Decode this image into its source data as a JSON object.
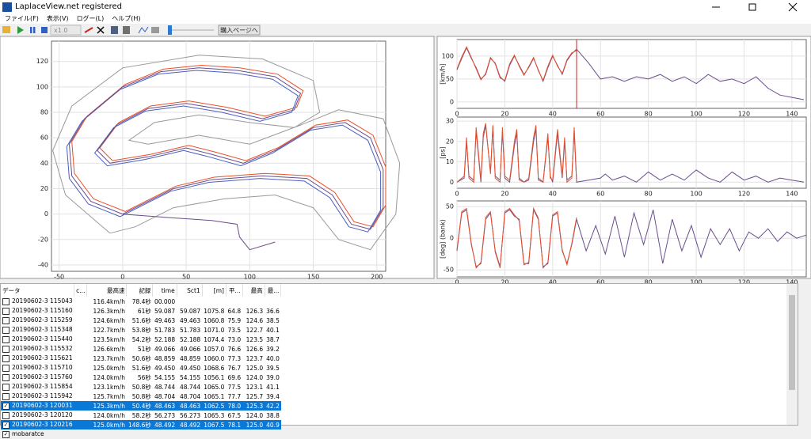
{
  "window": {
    "title": "LaplaceView.net registered"
  },
  "menu": [
    "ファイル(F)",
    "表示(V)",
    "ログー(L)",
    "ヘルプ(H)"
  ],
  "toolbar": {
    "speed": "x1.0",
    "buy_button": "購入ページへ"
  },
  "chart_data": [
    {
      "type": "line",
      "xlim": [
        -56,
        207
      ],
      "ylim": [
        -45,
        136
      ],
      "xticks": [
        -50,
        0,
        50,
        100,
        150,
        200
      ],
      "yticks": [
        -40,
        -20,
        0,
        20,
        40,
        60,
        80,
        100,
        120
      ],
      "grid": true,
      "series": [
        {
          "color": "#999999",
          "x": [
            -10,
            -45,
            -55,
            -40,
            0,
            60,
            110,
            150,
            155,
            135,
            100,
            60,
            25,
            5,
            20,
            60,
            100,
            140,
            170,
            205,
            218,
            215,
            195,
            170,
            150,
            120,
            80,
            40,
            10,
            -10
          ],
          "values": [
            -15,
            15,
            50,
            85,
            115,
            125,
            122,
            105,
            80,
            68,
            72,
            78,
            72,
            58,
            55,
            62,
            55,
            70,
            82,
            75,
            40,
            0,
            -28,
            -20,
            5,
            15,
            12,
            5,
            -10,
            -15
          ]
        },
        {
          "color": "#e8502a",
          "x": [
            2,
            -23,
            -38,
            -40,
            -28,
            2,
            32,
            62,
            92,
            122,
            142,
            137,
            112,
            82,
            52,
            22,
            -3,
            -18,
            -8,
            22,
            52,
            72,
            97,
            122,
            152,
            177,
            197,
            207,
            207,
            197,
            182,
            167,
            147,
            112,
            72,
            42,
            12,
            2
          ],
          "values": [
            2,
            12,
            32,
            57,
            77,
            102,
            114,
            117,
            115,
            110,
            97,
            84,
            77,
            84,
            89,
            85,
            72,
            52,
            42,
            47,
            54,
            49,
            42,
            52,
            70,
            74,
            62,
            37,
            7,
            -10,
            -6,
            17,
            30,
            32,
            29,
            22,
            7,
            2
          ]
        },
        {
          "color": "#4a5fc1",
          "x": [
            -2,
            -27,
            -42,
            -44,
            -32,
            -2,
            28,
            58,
            88,
            118,
            138,
            133,
            108,
            78,
            48,
            18,
            -7,
            -22,
            -12,
            18,
            48,
            68,
            93,
            118,
            148,
            173,
            193,
            203,
            203,
            193,
            178,
            163,
            143,
            108,
            68,
            38,
            8,
            -2
          ],
          "values": [
            -2,
            8,
            28,
            53,
            73,
            98,
            110,
            113,
            111,
            106,
            93,
            80,
            73,
            80,
            85,
            81,
            68,
            48,
            38,
            43,
            50,
            45,
            38,
            48,
            66,
            70,
            58,
            33,
            3,
            -14,
            -10,
            13,
            26,
            28,
            25,
            18,
            3,
            -2
          ]
        },
        {
          "color": "#6a4c8c",
          "x": [
            120,
            100,
            92,
            90,
            70,
            40,
            0,
            -25,
            -40,
            -42,
            -30,
            0,
            30,
            60,
            90,
            120,
            140,
            135,
            110,
            80,
            50,
            20,
            -5,
            -20,
            -10,
            20,
            50,
            70,
            95,
            120,
            150,
            175,
            195,
            205,
            205,
            195,
            180,
            165,
            145,
            110,
            70,
            40,
            10,
            0
          ],
          "values": [
            -22,
            -28,
            -18,
            -8,
            -5,
            -3,
            0,
            10,
            30,
            55,
            75,
            100,
            112,
            115,
            113,
            108,
            95,
            82,
            75,
            82,
            87,
            83,
            70,
            50,
            40,
            45,
            52,
            47,
            40,
            50,
            68,
            72,
            60,
            35,
            5,
            -12,
            -8,
            15,
            28,
            30,
            27,
            20,
            5,
            0
          ]
        }
      ]
    },
    {
      "type": "line",
      "ylabel": "[km/h]",
      "xlim": [
        0,
        146
      ],
      "ylim": [
        -14,
        136
      ],
      "xticks": [
        0,
        20,
        40,
        60,
        80,
        100,
        120,
        140
      ],
      "yticks": [
        0,
        50,
        100
      ],
      "grid": true,
      "cursor_x": 50,
      "series": [
        {
          "color": "#6a4c8c",
          "x": [
            0,
            2,
            4,
            6,
            8,
            10,
            12,
            14,
            16,
            18,
            20,
            22,
            24,
            26,
            28,
            30,
            32,
            34,
            36,
            38,
            40,
            42,
            44,
            46,
            48,
            50,
            55,
            60,
            65,
            70,
            75,
            80,
            85,
            90,
            95,
            100,
            105,
            110,
            115,
            120,
            125,
            130,
            135,
            140,
            145
          ],
          "values": [
            70,
            95,
            118,
            95,
            75,
            50,
            60,
            95,
            85,
            55,
            45,
            80,
            100,
            80,
            60,
            75,
            95,
            70,
            45,
            75,
            100,
            80,
            60,
            90,
            105,
            115,
            85,
            50,
            55,
            45,
            55,
            50,
            60,
            45,
            55,
            40,
            60,
            45,
            50,
            40,
            55,
            30,
            15,
            10,
            5
          ]
        },
        {
          "color": "#e8502a",
          "x": [
            0,
            2,
            4,
            6,
            8,
            10,
            12,
            14,
            16,
            18,
            20,
            22,
            24,
            26,
            28,
            30,
            32,
            34,
            36,
            38,
            40,
            42,
            44,
            46,
            48,
            50
          ],
          "values": [
            72,
            98,
            120,
            97,
            72,
            48,
            62,
            97,
            83,
            52,
            47,
            83,
            102,
            78,
            58,
            77,
            97,
            68,
            47,
            78,
            102,
            78,
            62,
            92,
            107,
            112
          ]
        }
      ]
    },
    {
      "type": "line",
      "ylabel": "[ps]",
      "xlim": [
        0,
        146
      ],
      "ylim": [
        -3,
        32
      ],
      "xticks": [
        0,
        20,
        40,
        60,
        80,
        100,
        120,
        140
      ],
      "yticks": [
        0,
        10,
        20,
        30
      ],
      "grid": true,
      "series": [
        {
          "color": "#6a4c8c",
          "x": [
            0,
            3,
            4,
            5,
            7,
            8,
            10,
            11,
            12,
            14,
            15,
            16,
            18,
            19,
            20,
            22,
            24,
            25,
            26,
            28,
            30,
            32,
            33,
            34,
            36,
            38,
            39,
            40,
            42,
            44,
            45,
            46,
            48,
            49,
            50,
            55,
            60,
            62,
            65,
            70,
            75,
            80,
            85,
            90,
            95,
            100,
            105,
            110,
            115,
            120,
            125,
            130,
            135,
            140,
            145
          ],
          "values": [
            0,
            2,
            20,
            3,
            1,
            25,
            0,
            22,
            28,
            5,
            27,
            3,
            1,
            25,
            2,
            0,
            18,
            24,
            2,
            0,
            1,
            20,
            26,
            2,
            0,
            22,
            3,
            0,
            24,
            2,
            20,
            1,
            3,
            25,
            0,
            1,
            2,
            4,
            1,
            3,
            0,
            5,
            1,
            4,
            1,
            6,
            2,
            0,
            5,
            1,
            3,
            0,
            2,
            1,
            0
          ]
        },
        {
          "color": "#e8502a",
          "x": [
            0,
            3,
            4,
            5,
            7,
            8,
            10,
            11,
            12,
            14,
            15,
            16,
            18,
            19,
            20,
            22,
            24,
            25,
            26,
            28,
            30,
            32,
            33,
            34,
            36,
            38,
            39,
            40,
            42,
            44,
            45,
            46,
            48,
            49,
            50
          ],
          "values": [
            0,
            3,
            22,
            2,
            0,
            27,
            1,
            24,
            29,
            4,
            28,
            2,
            0,
            27,
            3,
            1,
            20,
            26,
            1,
            0,
            2,
            22,
            28,
            1,
            0,
            24,
            2,
            1,
            26,
            3,
            22,
            0,
            2,
            27,
            1
          ]
        }
      ]
    },
    {
      "type": "line",
      "ylabel": "[deg] (bank)",
      "xlim": [
        0,
        146
      ],
      "ylim": [
        -61,
        59
      ],
      "xticks": [
        0,
        20,
        40,
        60,
        80,
        100,
        120,
        140
      ],
      "yticks": [
        -50,
        0,
        50
      ],
      "grid": true,
      "series": [
        {
          "color": "#6a4c8c",
          "x": [
            0,
            2,
            4,
            6,
            8,
            10,
            12,
            14,
            16,
            18,
            20,
            22,
            24,
            26,
            28,
            30,
            32,
            34,
            36,
            38,
            40,
            42,
            44,
            46,
            48,
            50,
            54,
            58,
            62,
            66,
            70,
            74,
            78,
            82,
            86,
            90,
            94,
            98,
            102,
            106,
            110,
            114,
            118,
            122,
            126,
            130,
            134,
            138,
            142,
            146
          ],
          "values": [
            -20,
            40,
            45,
            -10,
            -45,
            -40,
            30,
            40,
            -20,
            -45,
            40,
            45,
            35,
            30,
            -40,
            -40,
            45,
            30,
            -45,
            -40,
            35,
            40,
            -20,
            -40,
            -10,
            30,
            -20,
            20,
            -25,
            35,
            -30,
            40,
            -10,
            45,
            -40,
            30,
            -20,
            20,
            -30,
            15,
            -10,
            15,
            -20,
            10,
            0,
            15,
            -5,
            10,
            0,
            5
          ]
        },
        {
          "color": "#e8502a",
          "x": [
            0,
            2,
            4,
            6,
            8,
            10,
            12,
            14,
            16,
            18,
            20,
            22,
            24,
            26,
            28,
            30,
            32,
            34,
            36,
            38,
            40,
            42,
            44,
            46,
            48,
            50
          ],
          "values": [
            -18,
            42,
            47,
            -8,
            -47,
            -38,
            33,
            42,
            -22,
            -47,
            42,
            47,
            37,
            28,
            -42,
            -38,
            47,
            32,
            -47,
            -38,
            37,
            42,
            -18,
            -42,
            -8,
            33
          ]
        }
      ]
    }
  ],
  "table": {
    "columns": [
      "データ",
      "c...",
      "最高速",
      "記録",
      "time",
      "Sct1",
      "[m]",
      "平...",
      "最高",
      "最..."
    ],
    "rows": [
      {
        "checked": false,
        "selected": false,
        "cells": [
          "20190602-3 115043",
          "116.4km/h",
          "78.4秒",
          "00.000"
        ]
      },
      {
        "checked": false,
        "selected": false,
        "cells": [
          "20190602-3 115160",
          "126.3km/h",
          "61秒",
          "59.087",
          "59.087",
          "1075.8",
          "64.8",
          "126.3",
          "36.6"
        ]
      },
      {
        "checked": false,
        "selected": false,
        "cells": [
          "20190602-3 115259",
          "124.6km/h",
          "51.6秒",
          "49.463",
          "49.463",
          "1060.8",
          "75.9",
          "124.6",
          "38.5"
        ]
      },
      {
        "checked": false,
        "selected": false,
        "cells": [
          "20190602-3 115348",
          "122.7km/h",
          "53.8秒",
          "51.783",
          "51.783",
          "1071.0",
          "73.5",
          "122.7",
          "40.1"
        ]
      },
      {
        "checked": false,
        "selected": false,
        "cells": [
          "20190602-3 115440",
          "123.5km/h",
          "54.2秒",
          "52.188",
          "52.188",
          "1074.4",
          "73.0",
          "123.5",
          "38.7"
        ]
      },
      {
        "checked": false,
        "selected": false,
        "cells": [
          "20190602-3 115532",
          "126.6km/h",
          "51秒",
          "49.066",
          "49.066",
          "1057.0",
          "76.6",
          "126.6",
          "39.2"
        ]
      },
      {
        "checked": false,
        "selected": false,
        "cells": [
          "20190602-3 115621",
          "123.7km/h",
          "50.6秒",
          "48.859",
          "48.859",
          "1060.0",
          "77.3",
          "123.7",
          "40.0"
        ]
      },
      {
        "checked": false,
        "selected": false,
        "cells": [
          "20190602-3 115710",
          "125.0km/h",
          "51.6秒",
          "49.450",
          "49.450",
          "1068.6",
          "76.7",
          "125.0",
          "39.5"
        ]
      },
      {
        "checked": false,
        "selected": false,
        "cells": [
          "20190602-3 115760",
          "124.0km/h",
          "56秒",
          "54.155",
          "54.155",
          "1056.1",
          "69.6",
          "124.0",
          "39.0"
        ]
      },
      {
        "checked": false,
        "selected": false,
        "cells": [
          "20190602-3 115854",
          "123.1km/h",
          "50.8秒",
          "48.744",
          "48.744",
          "1065.0",
          "77.5",
          "123.1",
          "41.1"
        ]
      },
      {
        "checked": false,
        "selected": false,
        "cells": [
          "20190602-3 115942",
          "125.7km/h",
          "50.8秒",
          "48.704",
          "48.704",
          "1065.1",
          "77.7",
          "125.7",
          "39.4"
        ]
      },
      {
        "checked": true,
        "selected": true,
        "cells": [
          "20190602-3 120031",
          "125.3km/h",
          "50.4秒",
          "48.463",
          "48.463",
          "1062.5",
          "78.0",
          "125.3",
          "42.2"
        ]
      },
      {
        "checked": false,
        "selected": false,
        "cells": [
          "20190602-3 120120",
          "124.0km/h",
          "58.2秒",
          "56.273",
          "56.273",
          "1065.3",
          "67.5",
          "124.0",
          "38.8"
        ]
      },
      {
        "checked": true,
        "selected": true,
        "cells": [
          "20190602-3 120216",
          "125.0km/h",
          "148.6秒",
          "48.492",
          "48.492",
          "1067.5",
          "78.1",
          "125.0",
          "40.9"
        ]
      },
      {
        "checked": true,
        "selected": false,
        "cells": [
          "mobaratce"
        ]
      }
    ]
  }
}
